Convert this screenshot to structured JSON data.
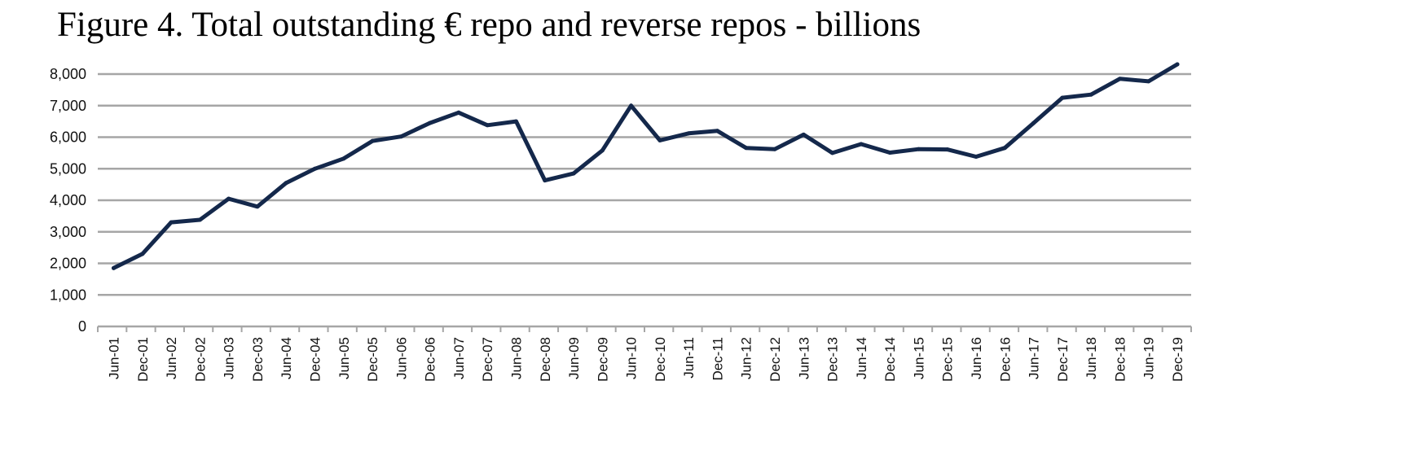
{
  "chart_data": {
    "type": "line",
    "title": "Figure 4. Total outstanding € repo and reverse repos - billions",
    "xlabel": "",
    "ylabel": "",
    "ylim": [
      0,
      8000
    ],
    "yticks": [
      "0",
      "1,000",
      "2,000",
      "3,000",
      "4,000",
      "5,000",
      "6,000",
      "7,000",
      "8,000"
    ],
    "grid": true,
    "legend": "none",
    "line_color": "#14284b",
    "grid_color": "#a6a6a6",
    "categories": [
      "Jun-01",
      "Dec-01",
      "Jun-02",
      "Dec-02",
      "Jun-03",
      "Dec-03",
      "Jun-04",
      "Dec-04",
      "Jun-05",
      "Dec-05",
      "Jun-06",
      "Dec-06",
      "Jun-07",
      "Dec-07",
      "Jun-08",
      "Dec-08",
      "Jun-09",
      "Dec-09",
      "Jun-10",
      "Dec-10",
      "Jun-11",
      "Dec-11",
      "Jun-12",
      "Dec-12",
      "Jun-13",
      "Dec-13",
      "Jun-14",
      "Dec-14",
      "Jun-15",
      "Dec-15",
      "Jun-16",
      "Dec-16",
      "Jun-17",
      "Dec-17",
      "Jun-18",
      "Dec-18",
      "Jun-19",
      "Dec-19"
    ],
    "series": [
      {
        "values": [
          1850,
          2300,
          3300,
          3380,
          4050,
          3800,
          4550,
          5000,
          5320,
          5880,
          6020,
          6450,
          6780,
          6380,
          6500,
          4630,
          4850,
          5580,
          7000,
          5900,
          6120,
          6200,
          5660,
          5620,
          6080,
          5500,
          5780,
          5510,
          5620,
          5610,
          5380,
          5660,
          6450,
          7250,
          7350,
          7850,
          7770,
          8310
        ]
      }
    ]
  }
}
